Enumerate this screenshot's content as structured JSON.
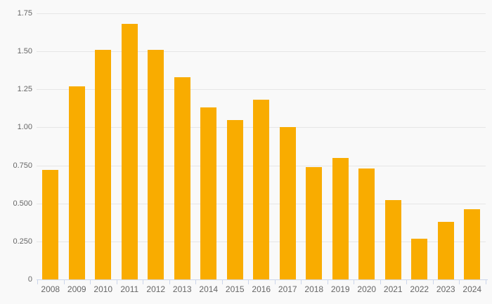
{
  "page": {
    "background_color": "#f9f9f9"
  },
  "style": {
    "bar_color": "#F9AC00",
    "grid_color": "#e6e6e6",
    "axis_line_color": "#ccd6eb",
    "label_color": "#666666"
  },
  "chart_data": {
    "type": "bar",
    "title": "",
    "xlabel": "",
    "ylabel": "",
    "legend": "none",
    "grid": true,
    "ylim": [
      0,
      1.75
    ],
    "y_ticks": [
      0,
      0.25,
      0.5,
      0.75,
      1.0,
      1.25,
      1.5,
      1.75
    ],
    "y_tick_labels": [
      "0",
      "0.250",
      "0.500",
      "0.750",
      "1.00",
      "1.25",
      "1.50",
      "1.75"
    ],
    "categories": [
      "2008",
      "2009",
      "2010",
      "2011",
      "2012",
      "2013",
      "2014",
      "2015",
      "2016",
      "2017",
      "2018",
      "2019",
      "2020",
      "2021",
      "2022",
      "2023",
      "2024"
    ],
    "values": [
      0.72,
      1.27,
      1.51,
      1.68,
      1.51,
      1.33,
      1.13,
      1.05,
      1.18,
      1.0,
      0.74,
      0.8,
      0.73,
      0.52,
      0.27,
      0.38,
      0.46
    ]
  }
}
